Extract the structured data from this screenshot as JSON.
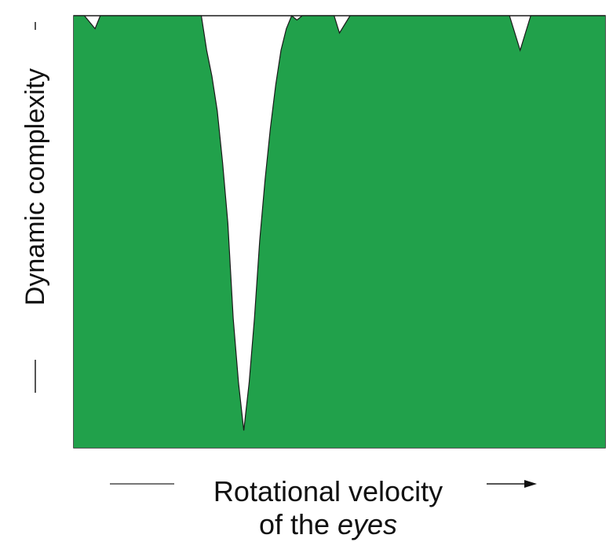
{
  "chart_data": {
    "type": "area",
    "title": "",
    "xlabel": "Rotational velocity",
    "xlabel_line2_prefix": "of the ",
    "xlabel_line2_emphasis": "eyes",
    "ylabel": "Dynamic complexity",
    "xlim": [
      0,
      100
    ],
    "ylim": [
      0,
      100
    ],
    "grid": false,
    "legend": "none",
    "fill_color": "#21a14b",
    "outline_color": "#1a1a1a",
    "series": [
      {
        "x": [
          0,
          2,
          4,
          5,
          6,
          7,
          8,
          9,
          10,
          11,
          12,
          13,
          14,
          15,
          16,
          17,
          18,
          19,
          20,
          21,
          22,
          23,
          24,
          25,
          26,
          27,
          28,
          29,
          30,
          31,
          32,
          33,
          34,
          35,
          36,
          37,
          38,
          39,
          40,
          41,
          42,
          43,
          44,
          45,
          46,
          47,
          48,
          49,
          50,
          52,
          54,
          56,
          58,
          60,
          62,
          64,
          66,
          68,
          70,
          72,
          74,
          76,
          78,
          80,
          82,
          84,
          86,
          88,
          90,
          92,
          94,
          96,
          98,
          100
        ],
        "values": [
          100,
          100,
          97,
          100,
          100,
          100,
          100,
          100,
          100,
          100,
          100,
          100,
          100,
          100,
          100,
          100,
          100,
          100,
          100,
          100,
          100,
          100,
          100,
          92,
          86,
          78,
          66,
          52,
          30,
          15,
          4,
          15,
          30,
          48,
          62,
          74,
          84,
          92,
          97,
          100,
          99,
          100,
          100,
          100,
          100,
          100,
          100,
          100,
          96,
          100,
          100,
          100,
          100,
          100,
          100,
          100,
          100,
          100,
          100,
          100,
          100,
          100,
          100,
          100,
          100,
          92,
          100,
          100,
          100,
          100,
          100,
          100,
          100,
          100
        ]
      }
    ]
  }
}
